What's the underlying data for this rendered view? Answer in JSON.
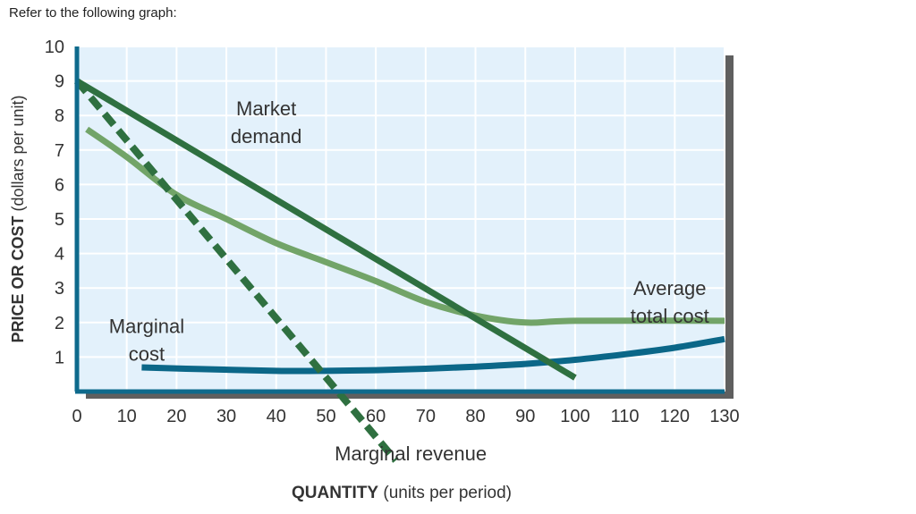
{
  "prompt": "Refer to the following graph:",
  "chart_data": {
    "type": "line",
    "title": "",
    "xlabel_bold": "QUANTITY",
    "xlabel_rest": " (units per period)",
    "ylabel_bold": "PRICE OR COST",
    "ylabel_rest": " (dollars per unit)",
    "xlim": [
      0,
      130
    ],
    "ylim": [
      0,
      10
    ],
    "grid": true,
    "x_ticks": [
      0,
      10,
      20,
      30,
      40,
      50,
      60,
      70,
      80,
      90,
      100,
      110,
      120,
      130
    ],
    "y_ticks": [
      1,
      2,
      3,
      4,
      5,
      6,
      7,
      8,
      9,
      10
    ],
    "colors": {
      "plot_bg": "#e3f1fb",
      "grid": "#ffffff",
      "axis": "#0e6a8c",
      "shadow": "#5f5f5f",
      "demand": "#2f7040",
      "marginal_revenue": "#2f7040",
      "atc": "#72a468",
      "mc": "#0b6788"
    },
    "series": [
      {
        "key": "demand",
        "points": [
          [
            0,
            9.0
          ],
          [
            100,
            0.4
          ]
        ]
      },
      {
        "key": "marginal_revenue",
        "dashed": true,
        "points": [
          [
            0,
            9.0
          ],
          [
            64,
            -2.0
          ]
        ]
      },
      {
        "key": "atc",
        "points": [
          [
            2,
            7.6
          ],
          [
            10,
            6.8
          ],
          [
            20,
            5.7
          ],
          [
            30,
            5.0
          ],
          [
            40,
            4.3
          ],
          [
            50,
            3.75
          ],
          [
            60,
            3.2
          ],
          [
            70,
            2.6
          ],
          [
            80,
            2.2
          ],
          [
            90,
            2.0
          ],
          [
            100,
            2.05
          ],
          [
            130,
            2.05
          ]
        ]
      },
      {
        "key": "mc",
        "points": [
          [
            13,
            0.7
          ],
          [
            25,
            0.65
          ],
          [
            40,
            0.6
          ],
          [
            50,
            0.6
          ],
          [
            60,
            0.62
          ],
          [
            70,
            0.66
          ],
          [
            80,
            0.72
          ],
          [
            90,
            0.8
          ],
          [
            100,
            0.92
          ],
          [
            110,
            1.08
          ],
          [
            120,
            1.27
          ],
          [
            130,
            1.52
          ]
        ]
      }
    ],
    "annotations": [
      {
        "key": "demand_label",
        "lines": [
          "Market",
          "demand"
        ],
        "x": 38,
        "y": 8.0
      },
      {
        "key": "mr_label",
        "lines": [
          "Marginal revenue"
        ],
        "x": 67,
        "y": -2.0
      },
      {
        "key": "atc_label",
        "lines": [
          "Average",
          "total cost"
        ],
        "x": 119,
        "y": 2.8
      },
      {
        "key": "mc_label",
        "lines": [
          "Marginal",
          "cost"
        ],
        "x": 14,
        "y": 1.7
      }
    ]
  }
}
